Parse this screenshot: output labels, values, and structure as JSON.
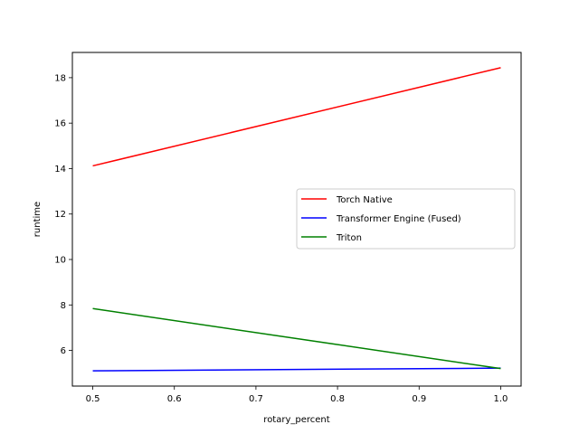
{
  "chart_data": {
    "type": "line",
    "title": "",
    "xlabel": "rotary_percent",
    "ylabel": "runtime",
    "xlim": [
      0.475,
      1.025
    ],
    "ylim": [
      4.43,
      19.11
    ],
    "xticks": [
      0.5,
      0.6,
      0.7,
      0.8,
      0.9,
      1.0
    ],
    "xtick_labels": [
      "0.5",
      "0.6",
      "0.7",
      "0.8",
      "0.9",
      "1.0"
    ],
    "yticks": [
      6,
      8,
      10,
      12,
      14,
      16,
      18
    ],
    "ytick_labels": [
      "6",
      "8",
      "10",
      "12",
      "14",
      "16",
      "18"
    ],
    "grid": false,
    "legend_position": "center-right",
    "series": [
      {
        "name": "Torch Native",
        "color": "#ff0000",
        "x": [
          0.5,
          1.0
        ],
        "y": [
          14.12,
          18.44
        ]
      },
      {
        "name": "Transformer Engine (Fused)",
        "color": "#0000ff",
        "x": [
          0.5,
          1.0
        ],
        "y": [
          5.1,
          5.22
        ]
      },
      {
        "name": "Triton",
        "color": "#008000",
        "x": [
          0.5,
          1.0
        ],
        "y": [
          7.84,
          5.2
        ]
      }
    ]
  }
}
